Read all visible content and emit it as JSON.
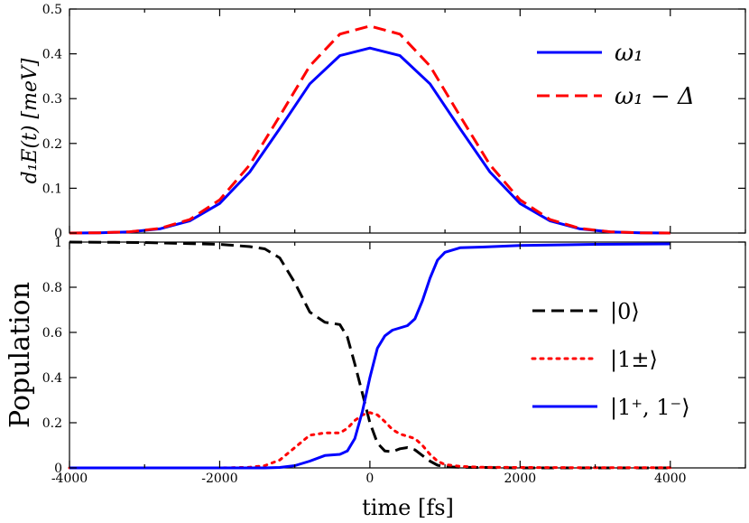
{
  "chart_data": [
    {
      "type": "line",
      "title": "",
      "xlabel": "",
      "ylabel": "d₁E(t) [meV]",
      "xlim": [
        -4000,
        5000
      ],
      "ylim": [
        0,
        0.5
      ],
      "xticks": [],
      "yticks": [
        "0",
        "0.1",
        "0.2",
        "0.3",
        "0.4",
        "0.5"
      ],
      "grid": false,
      "legend_position": "top-right",
      "series": [
        {
          "name": "ω₁",
          "color": "#0000ff",
          "dash": "solid",
          "x": [
            -4000,
            -3600,
            -3200,
            -2800,
            -2400,
            -2000,
            -1600,
            -1200,
            -800,
            -400,
            0,
            400,
            800,
            1200,
            1600,
            2000,
            2400,
            2800,
            3200,
            3600,
            4000
          ],
          "values": [
            0.0001,
            0.0006,
            0.0026,
            0.0092,
            0.027,
            0.066,
            0.136,
            0.233,
            0.333,
            0.396,
            0.413,
            0.396,
            0.333,
            0.233,
            0.136,
            0.066,
            0.027,
            0.0092,
            0.0026,
            0.0006,
            0.0001
          ]
        },
        {
          "name": "ω₁ − Δ",
          "color": "#ff0000",
          "dash": "dashed",
          "x": [
            -4000,
            -3600,
            -3200,
            -2800,
            -2400,
            -2000,
            -1600,
            -1200,
            -800,
            -400,
            0,
            400,
            800,
            1200,
            1600,
            2000,
            2400,
            2800,
            3200,
            3600,
            4000
          ],
          "values": [
            0.0001,
            0.0007,
            0.0029,
            0.0103,
            0.03,
            0.074,
            0.152,
            0.261,
            0.373,
            0.444,
            0.462,
            0.444,
            0.373,
            0.261,
            0.152,
            0.074,
            0.03,
            0.0103,
            0.0029,
            0.0007,
            0.0001
          ]
        }
      ]
    },
    {
      "type": "line",
      "title": "",
      "xlabel": "time [fs]",
      "ylabel": "Population",
      "xlim": [
        -4000,
        5000
      ],
      "ylim": [
        0,
        1
      ],
      "xticks": [
        "-4000",
        "-2000",
        "0",
        "2000",
        "4000"
      ],
      "yticks": [
        "0",
        "0.2",
        "0.4",
        "0.6",
        "0.8",
        "1"
      ],
      "grid": false,
      "legend_position": "center-right",
      "series": [
        {
          "name": "|0⟩",
          "color": "#000000",
          "dash": "dashed",
          "x": [
            -4000,
            -3000,
            -2000,
            -1600,
            -1400,
            -1200,
            -1000,
            -800,
            -600,
            -400,
            -300,
            -200,
            -100,
            0,
            100,
            200,
            300,
            400,
            500,
            600,
            700,
            800,
            900,
            1000,
            1200,
            1500,
            2000,
            3000,
            4000
          ],
          "values": [
            1.0,
            0.998,
            0.99,
            0.98,
            0.97,
            0.93,
            0.82,
            0.69,
            0.645,
            0.635,
            0.58,
            0.46,
            0.33,
            0.2,
            0.11,
            0.075,
            0.072,
            0.085,
            0.09,
            0.08,
            0.055,
            0.03,
            0.012,
            0.005,
            0.003,
            0.002,
            0.0,
            0.0,
            0.0
          ]
        },
        {
          "name": "|1±⟩",
          "color": "#ff0000",
          "dash": "dotted",
          "x": [
            -4000,
            -3000,
            -2000,
            -1600,
            -1400,
            -1200,
            -1000,
            -800,
            -600,
            -400,
            -300,
            -200,
            -100,
            0,
            100,
            200,
            300,
            400,
            500,
            600,
            700,
            800,
            900,
            1000,
            1200,
            1500,
            2000,
            3000,
            4000
          ],
          "values": [
            0.0,
            0.0,
            0.0,
            0.003,
            0.01,
            0.035,
            0.09,
            0.145,
            0.155,
            0.155,
            0.175,
            0.21,
            0.235,
            0.245,
            0.235,
            0.205,
            0.17,
            0.15,
            0.14,
            0.13,
            0.1,
            0.06,
            0.03,
            0.015,
            0.007,
            0.003,
            0.002,
            0.001,
            0.001
          ]
        },
        {
          "name": "|1⁺, 1⁻⟩",
          "color": "#0000ff",
          "dash": "solid",
          "x": [
            -4000,
            -3000,
            -2000,
            -1600,
            -1400,
            -1200,
            -1000,
            -800,
            -600,
            -400,
            -300,
            -200,
            -100,
            0,
            100,
            200,
            300,
            400,
            500,
            600,
            700,
            800,
            900,
            1000,
            1200,
            1500,
            2000,
            3000,
            4000
          ],
          "values": [
            0.0,
            0.0,
            0.0,
            0.0,
            0.0,
            0.002,
            0.01,
            0.03,
            0.055,
            0.06,
            0.075,
            0.13,
            0.25,
            0.4,
            0.53,
            0.585,
            0.61,
            0.62,
            0.63,
            0.66,
            0.74,
            0.84,
            0.92,
            0.955,
            0.975,
            0.978,
            0.985,
            0.99,
            0.992
          ]
        }
      ]
    }
  ]
}
